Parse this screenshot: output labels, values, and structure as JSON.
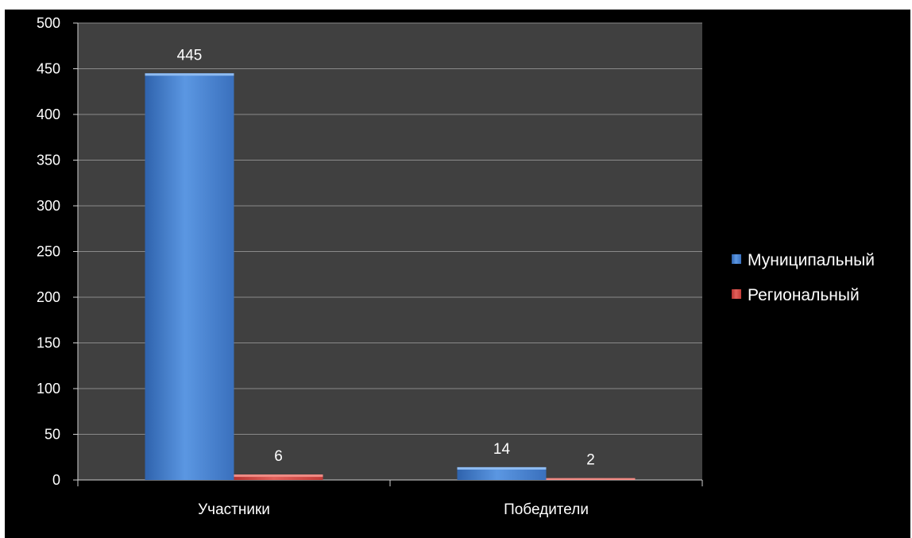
{
  "chart_data": {
    "type": "bar",
    "categories": [
      "Участники",
      "Победители"
    ],
    "series": [
      {
        "name": "Муниципальный",
        "values": [
          445,
          14
        ],
        "color": "#4a86d4"
      },
      {
        "name": "Региональный",
        "values": [
          6,
          2
        ],
        "color": "#d84a45"
      }
    ],
    "title": "",
    "xlabel": "",
    "ylabel": "",
    "ylim": [
      0,
      500
    ],
    "y_ticks": [
      "0",
      "50",
      "100",
      "150",
      "200",
      "250",
      "300",
      "350",
      "400",
      "450",
      "500"
    ],
    "data_labels": [
      [
        "445",
        "14"
      ],
      [
        "6",
        "2"
      ]
    ],
    "grid": true,
    "legend_position": "right",
    "plot_background": "#404040",
    "background": "#000000"
  }
}
